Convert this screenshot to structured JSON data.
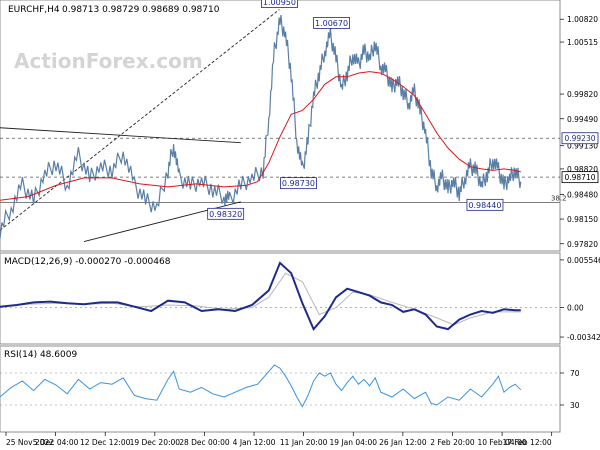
{
  "chart_data": [
    {
      "type": "line",
      "panel": "price",
      "title": "EURCHF,H4",
      "ohlc_readout": "0.98713 0.98729 0.98689 0.98710",
      "watermark": "ActionForex.com",
      "ylim": [
        0.9775,
        1.0105
      ],
      "y_ticks": [
        "1.00820",
        "1.00515",
        "0.99820",
        "0.99490",
        "0.99130",
        "0.98820",
        "0.98480",
        "0.98150",
        "0.97820"
      ],
      "current_price": "0.98710",
      "level_tag": "0.99230",
      "fib_label": "38.2",
      "annotations": [
        {
          "label": "1.00950",
          "x": 0.499,
          "y": 1.0095
        },
        {
          "label": "1.00670",
          "x": 0.592,
          "y": 1.0067
        },
        {
          "label": "0.98730",
          "x": 0.533,
          "y": 0.9873
        },
        {
          "label": "0.98320",
          "x": 0.403,
          "y": 0.9832
        },
        {
          "label": "0.98440",
          "x": 0.866,
          "y": 0.9844
        }
      ],
      "horizontal_levels": [
        {
          "name": "resistance",
          "y": 0.9923,
          "style": "dashed"
        },
        {
          "name": "current",
          "y": 0.9871,
          "style": "dashed"
        },
        {
          "name": "fib-38.2",
          "y": 0.9837,
          "style": "solid"
        }
      ],
      "trendlines": [
        {
          "name": "upper-channel",
          "x": [
            0.0,
            0.43
          ],
          "y": [
            0.9937,
            0.9917
          ],
          "style": "solid"
        },
        {
          "name": "lower-channel",
          "x": [
            0.15,
            0.43
          ],
          "y": [
            0.9785,
            0.9838
          ],
          "style": "solid"
        },
        {
          "name": "dotted-rising",
          "x": [
            0.0,
            0.499
          ],
          "y": [
            0.98,
            1.0095
          ],
          "style": "dotted"
        }
      ],
      "price_path": [
        [
          0.0,
          0.98
        ],
        [
          0.02,
          0.983
        ],
        [
          0.04,
          0.986
        ],
        [
          0.06,
          0.984
        ],
        [
          0.08,
          0.9875
        ],
        [
          0.1,
          0.989
        ],
        [
          0.12,
          0.986
        ],
        [
          0.14,
          0.99
        ],
        [
          0.16,
          0.987
        ],
        [
          0.18,
          0.9885
        ],
        [
          0.2,
          0.988
        ],
        [
          0.22,
          0.9905
        ],
        [
          0.24,
          0.986
        ],
        [
          0.26,
          0.984
        ],
        [
          0.28,
          0.983
        ],
        [
          0.3,
          0.988
        ],
        [
          0.31,
          0.9915
        ],
        [
          0.32,
          0.987
        ],
        [
          0.34,
          0.986
        ],
        [
          0.36,
          0.9865
        ],
        [
          0.38,
          0.9855
        ],
        [
          0.4,
          0.9845
        ],
        [
          0.41,
          0.984
        ],
        [
          0.43,
          0.986
        ],
        [
          0.45,
          0.987
        ],
        [
          0.47,
          0.988
        ],
        [
          0.48,
          0.995
        ],
        [
          0.49,
          1.004
        ],
        [
          0.5,
          1.008
        ],
        [
          0.51,
          1.006
        ],
        [
          0.52,
          1.001
        ],
        [
          0.53,
          0.992
        ],
        [
          0.54,
          0.988
        ],
        [
          0.55,
          0.992
        ],
        [
          0.56,
          0.998
        ],
        [
          0.57,
          1.001
        ],
        [
          0.58,
          1.004
        ],
        [
          0.59,
          1.006
        ],
        [
          0.6,
          1.003
        ],
        [
          0.61,
          0.999
        ],
        [
          0.62,
          1.001
        ],
        [
          0.63,
          1.0035
        ],
        [
          0.64,
          1.002
        ],
        [
          0.65,
          1.004
        ],
        [
          0.66,
          1.003
        ],
        [
          0.67,
          1.005
        ],
        [
          0.68,
          1.002
        ],
        [
          0.69,
          1.001
        ],
        [
          0.7,
          0.999
        ],
        [
          0.71,
          1.0
        ],
        [
          0.72,
          0.9985
        ],
        [
          0.73,
          0.997
        ],
        [
          0.74,
          0.9985
        ],
        [
          0.75,
          0.996
        ],
        [
          0.76,
          0.993
        ],
        [
          0.77,
          0.988
        ],
        [
          0.78,
          0.986
        ],
        [
          0.79,
          0.987
        ],
        [
          0.8,
          0.9855
        ],
        [
          0.81,
          0.9865
        ],
        [
          0.82,
          0.985
        ],
        [
          0.83,
          0.987
        ],
        [
          0.84,
          0.9885
        ],
        [
          0.85,
          0.988
        ],
        [
          0.86,
          0.986
        ],
        [
          0.87,
          0.9875
        ],
        [
          0.88,
          0.9895
        ],
        [
          0.89,
          0.988
        ],
        [
          0.9,
          0.986
        ],
        [
          0.91,
          0.987
        ],
        [
          0.92,
          0.988
        ],
        [
          0.93,
          0.9865
        ]
      ],
      "moving_average": [
        [
          0.0,
          0.984
        ],
        [
          0.05,
          0.9845
        ],
        [
          0.1,
          0.986
        ],
        [
          0.15,
          0.987
        ],
        [
          0.2,
          0.987
        ],
        [
          0.25,
          0.9862
        ],
        [
          0.3,
          0.9858
        ],
        [
          0.35,
          0.9862
        ],
        [
          0.4,
          0.9858
        ],
        [
          0.44,
          0.986
        ],
        [
          0.46,
          0.9865
        ],
        [
          0.48,
          0.989
        ],
        [
          0.5,
          0.9925
        ],
        [
          0.52,
          0.9955
        ],
        [
          0.54,
          0.996
        ],
        [
          0.56,
          0.9975
        ],
        [
          0.58,
          0.9995
        ],
        [
          0.6,
          1.0005
        ],
        [
          0.62,
          1.0005
        ],
        [
          0.64,
          1.001
        ],
        [
          0.66,
          1.0012
        ],
        [
          0.68,
          1.001
        ],
        [
          0.7,
          1.0002
        ],
        [
          0.72,
          0.9992
        ],
        [
          0.74,
          0.998
        ],
        [
          0.76,
          0.9955
        ],
        [
          0.78,
          0.993
        ],
        [
          0.8,
          0.991
        ],
        [
          0.82,
          0.9895
        ],
        [
          0.84,
          0.9885
        ],
        [
          0.86,
          0.9882
        ],
        [
          0.88,
          0.988
        ],
        [
          0.9,
          0.9882
        ],
        [
          0.92,
          0.988
        ],
        [
          0.93,
          0.9878
        ]
      ]
    },
    {
      "type": "line",
      "panel": "macd",
      "title": "MACD(12,26,9) -0.000270 -0.000468",
      "ylim": [
        -0.004,
        0.006
      ],
      "y_ticks": [
        "0.005546",
        "0.00",
        "-0.003423"
      ],
      "series": [
        {
          "values": [
            [
              0.0,
              0.0001
            ],
            [
              0.03,
              0.0003
            ],
            [
              0.06,
              0.0006
            ],
            [
              0.09,
              0.0007
            ],
            [
              0.12,
              0.0005
            ],
            [
              0.15,
              0.0004
            ],
            [
              0.18,
              0.0006
            ],
            [
              0.21,
              0.0006
            ],
            [
              0.24,
              0.0001
            ],
            [
              0.27,
              -0.0004
            ],
            [
              0.3,
              0.0008
            ],
            [
              0.33,
              0.0006
            ],
            [
              0.36,
              -0.0004
            ],
            [
              0.39,
              -0.0002
            ],
            [
              0.42,
              -0.0004
            ],
            [
              0.45,
              0.0003
            ],
            [
              0.48,
              0.002
            ],
            [
              0.5,
              0.0052
            ],
            [
              0.52,
              0.004
            ],
            [
              0.54,
              0.0005
            ],
            [
              0.56,
              -0.0025
            ],
            [
              0.58,
              -0.001
            ],
            [
              0.6,
              0.0012
            ],
            [
              0.62,
              0.0022
            ],
            [
              0.64,
              0.0018
            ],
            [
              0.66,
              0.0014
            ],
            [
              0.68,
              0.0006
            ],
            [
              0.7,
              0.0003
            ],
            [
              0.72,
              -0.0005
            ],
            [
              0.74,
              -0.0002
            ],
            [
              0.76,
              -0.0008
            ],
            [
              0.78,
              -0.0022
            ],
            [
              0.8,
              -0.0025
            ],
            [
              0.82,
              -0.0014
            ],
            [
              0.84,
              -0.0008
            ],
            [
              0.86,
              -0.0004
            ],
            [
              0.88,
              -0.0006
            ],
            [
              0.9,
              -0.0002
            ],
            [
              0.92,
              -0.0003
            ],
            [
              0.93,
              -0.0003
            ]
          ]
        },
        {
          "values": [
            [
              0.0,
              0.0001
            ],
            [
              0.05,
              0.0004
            ],
            [
              0.1,
              0.0005
            ],
            [
              0.15,
              0.0004
            ],
            [
              0.2,
              0.0005
            ],
            [
              0.25,
              0.0001
            ],
            [
              0.3,
              0.0003
            ],
            [
              0.35,
              0.0002
            ],
            [
              0.4,
              -0.0002
            ],
            [
              0.45,
              0.0
            ],
            [
              0.48,
              0.0012
            ],
            [
              0.51,
              0.004
            ],
            [
              0.54,
              0.003
            ],
            [
              0.57,
              -0.0008
            ],
            [
              0.6,
              0.0
            ],
            [
              0.63,
              0.0018
            ],
            [
              0.66,
              0.0015
            ],
            [
              0.7,
              0.0006
            ],
            [
              0.74,
              -0.0002
            ],
            [
              0.78,
              -0.0012
            ],
            [
              0.81,
              -0.002
            ],
            [
              0.84,
              -0.0012
            ],
            [
              0.88,
              -0.0005
            ],
            [
              0.93,
              -0.0005
            ]
          ]
        }
      ]
    },
    {
      "type": "line",
      "panel": "rsi",
      "title": "RSI(14) 48.6009",
      "ylim": [
        0,
        100
      ],
      "y_ticks": [
        "70",
        "30"
      ],
      "levels": [
        70,
        30
      ],
      "values": [
        [
          0.0,
          40
        ],
        [
          0.02,
          52
        ],
        [
          0.04,
          60
        ],
        [
          0.06,
          48
        ],
        [
          0.08,
          62
        ],
        [
          0.1,
          55
        ],
        [
          0.12,
          44
        ],
        [
          0.14,
          62
        ],
        [
          0.16,
          50
        ],
        [
          0.18,
          58
        ],
        [
          0.2,
          56
        ],
        [
          0.22,
          64
        ],
        [
          0.24,
          42
        ],
        [
          0.26,
          38
        ],
        [
          0.28,
          36
        ],
        [
          0.3,
          62
        ],
        [
          0.31,
          72
        ],
        [
          0.32,
          50
        ],
        [
          0.34,
          46
        ],
        [
          0.36,
          52
        ],
        [
          0.38,
          44
        ],
        [
          0.4,
          40
        ],
        [
          0.42,
          46
        ],
        [
          0.44,
          52
        ],
        [
          0.46,
          56
        ],
        [
          0.48,
          72
        ],
        [
          0.49,
          80
        ],
        [
          0.5,
          76
        ],
        [
          0.51,
          66
        ],
        [
          0.52,
          54
        ],
        [
          0.53,
          40
        ],
        [
          0.54,
          28
        ],
        [
          0.55,
          42
        ],
        [
          0.56,
          60
        ],
        [
          0.57,
          70
        ],
        [
          0.58,
          66
        ],
        [
          0.59,
          70
        ],
        [
          0.6,
          56
        ],
        [
          0.61,
          48
        ],
        [
          0.62,
          58
        ],
        [
          0.63,
          66
        ],
        [
          0.64,
          56
        ],
        [
          0.65,
          62
        ],
        [
          0.66,
          54
        ],
        [
          0.67,
          64
        ],
        [
          0.68,
          46
        ],
        [
          0.7,
          40
        ],
        [
          0.72,
          50
        ],
        [
          0.74,
          38
        ],
        [
          0.76,
          46
        ],
        [
          0.77,
          32
        ],
        [
          0.78,
          30
        ],
        [
          0.8,
          40
        ],
        [
          0.82,
          36
        ],
        [
          0.84,
          50
        ],
        [
          0.86,
          40
        ],
        [
          0.88,
          56
        ],
        [
          0.89,
          66
        ],
        [
          0.9,
          46
        ],
        [
          0.91,
          52
        ],
        [
          0.92,
          56
        ],
        [
          0.93,
          49
        ]
      ]
    }
  ],
  "time_axis": [
    "25 Nov 2022",
    "5 Dec 04:00",
    "12 Dec 12:00",
    "19 Dec 20:00",
    "28 Dec 00:00",
    "4 Jan 12:00",
    "11 Jan 20:00",
    "19 Jan 04:00",
    "26 Jan 12:00",
    "2 Feb 20:00",
    "10 Feb 04:00",
    "17 Feb 12:00"
  ],
  "colors": {
    "price": "#5a7fa6",
    "moving_average": "#e0141a",
    "macd": "#1e2a8c",
    "macd_signal": "#b8b8b8",
    "rsi": "#3a92e0",
    "grid": "#7a7a7a",
    "tag_border": "#1e2a8c",
    "tag_text": "#1e2a8c",
    "current_tag_bg": "#ffffff"
  }
}
